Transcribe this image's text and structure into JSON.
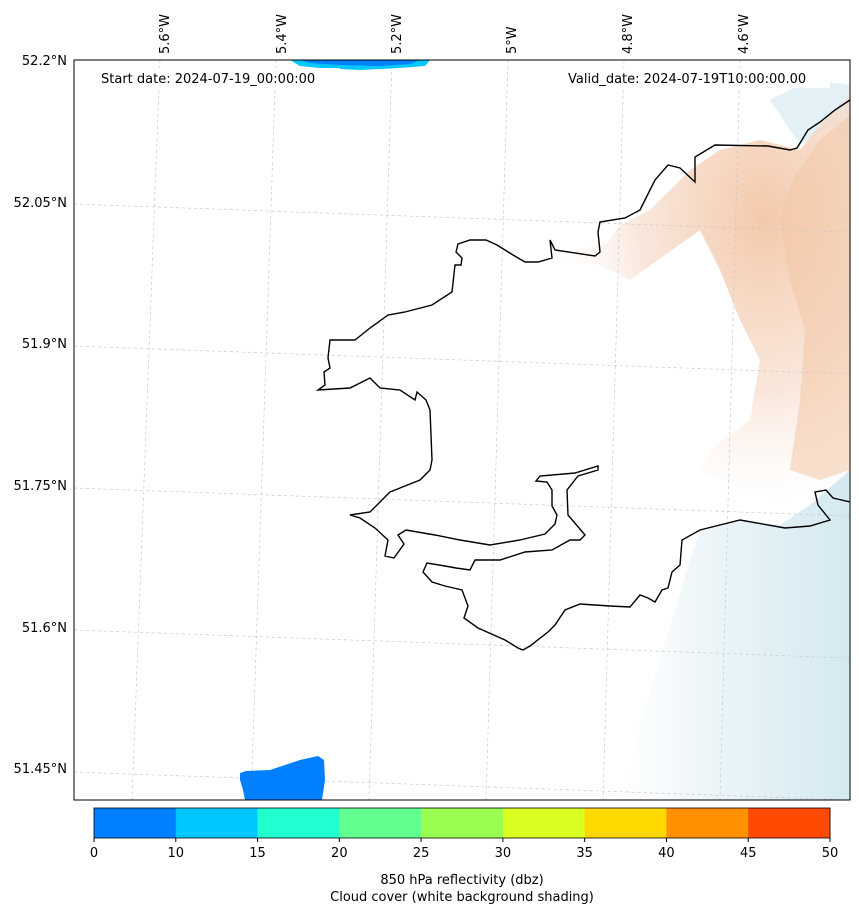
{
  "map": {
    "region": "Pembrokeshire coast, Wales",
    "start_date_label": "Start date: 2024-07-19_00:00:00",
    "valid_date_label": "Valid_date: 2024-07-19T10:00:00.00",
    "longitude_ticks": [
      "5.6°W",
      "5.4°W",
      "5.2°W",
      "5°W",
      "4.8°W",
      "4.6°W"
    ],
    "latitude_ticks": [
      "52.2°N",
      "52.05°N",
      "51.9°N",
      "51.75°N",
      "51.6°N",
      "51.45°N"
    ],
    "gridlines": true,
    "layers": {
      "coastline_color": "#000000",
      "cloud_cover_color": "#e6b89a",
      "sea_shading_color": "#d3e9f0",
      "reflectivity_colors": [
        "#0080ff",
        "#00c8ff"
      ]
    }
  },
  "colorbar": {
    "ticks": [
      "0",
      "10",
      "15",
      "20",
      "25",
      "30",
      "35",
      "40",
      "45",
      "50"
    ],
    "colors": [
      "#0080ff",
      "#00c8ff",
      "#20ffd0",
      "#60ff90",
      "#98ff50",
      "#d8ff20",
      "#ffd800",
      "#ff9000",
      "#ff4a00"
    ],
    "label_line1": "850 hPa reflectivity (dbz)",
    "label_line2": "Cloud cover (white background shading)"
  }
}
